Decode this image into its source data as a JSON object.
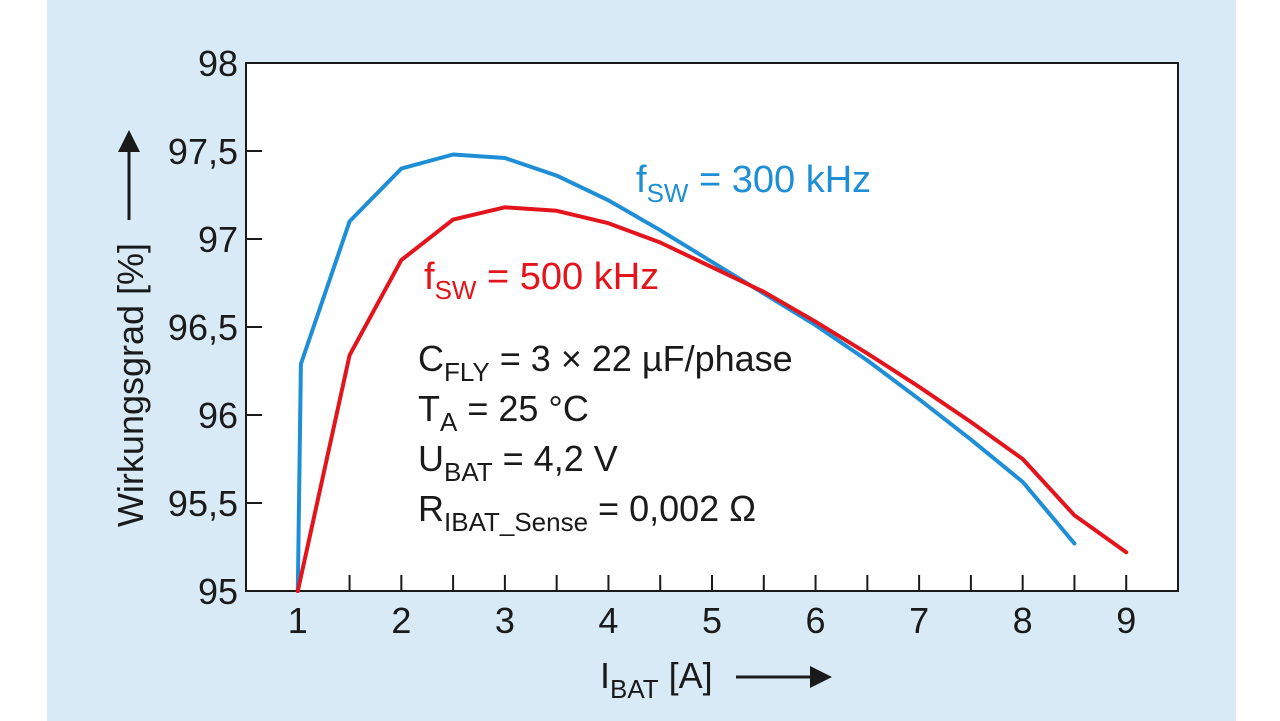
{
  "chart_data": {
    "type": "line",
    "x_label_main": "I",
    "x_label_sub": "BAT",
    "x_label_unit": " [A]",
    "y_label": "Wirkungsgrad [%]",
    "xlim": [
      0.5,
      9.5
    ],
    "ylim": [
      95,
      98
    ],
    "x_ticks": [
      1,
      2,
      3,
      4,
      5,
      6,
      7,
      8,
      9
    ],
    "x_tick_labels": [
      "1",
      "2",
      "3",
      "4",
      "5",
      "6",
      "7",
      "8",
      "9"
    ],
    "x_minor_ticks": [
      1.5,
      2.5,
      3.5,
      4.5,
      5.5,
      6.5,
      7.5,
      8.5
    ],
    "y_ticks": [
      95,
      95.5,
      96,
      96.5,
      97,
      97.5,
      98
    ],
    "y_tick_labels": [
      "95",
      "95,5",
      "96",
      "96,5",
      "97",
      "97,5",
      "98"
    ],
    "series": [
      {
        "name": "fSW = 300 kHz",
        "label_main": "f",
        "label_sub": "SW",
        "label_rest": " = 300 kHz",
        "color": "#1e8fd6",
        "x": [
          1,
          1.03,
          1.5,
          2,
          2.5,
          3,
          3.5,
          4,
          4.5,
          5,
          5.5,
          6,
          6.5,
          7,
          7.5,
          8,
          8.5
        ],
        "y": [
          95,
          96.29,
          97.1,
          97.4,
          97.48,
          97.46,
          97.36,
          97.22,
          97.05,
          96.87,
          96.69,
          96.51,
          96.31,
          96.09,
          95.86,
          95.62,
          95.27
        ]
      },
      {
        "name": "fSW = 500 kHz",
        "label_main": "f",
        "label_sub": "SW",
        "label_rest": " = 500 kHz",
        "color": "#e3141b",
        "x": [
          1,
          1.5,
          2,
          2.5,
          3,
          3.5,
          4,
          4.5,
          5,
          5.5,
          6,
          6.5,
          7,
          7.5,
          8,
          8.5,
          9
        ],
        "y": [
          95,
          96.34,
          96.88,
          97.11,
          97.18,
          97.16,
          97.09,
          96.98,
          96.84,
          96.7,
          96.53,
          96.35,
          96.16,
          95.96,
          95.75,
          95.43,
          95.22
        ]
      }
    ],
    "annotations": [
      {
        "main": "C",
        "sub": "FLY",
        "rest": " = 3 × 22 µF/phase"
      },
      {
        "main": "T",
        "sub": "A",
        "rest": " = 25 °C"
      },
      {
        "main": "U",
        "sub": "BAT",
        "rest": " = 4,2 V"
      },
      {
        "main": "R",
        "sub": "IBAT_Sense",
        "rest": " = 0,002 Ω"
      }
    ]
  }
}
